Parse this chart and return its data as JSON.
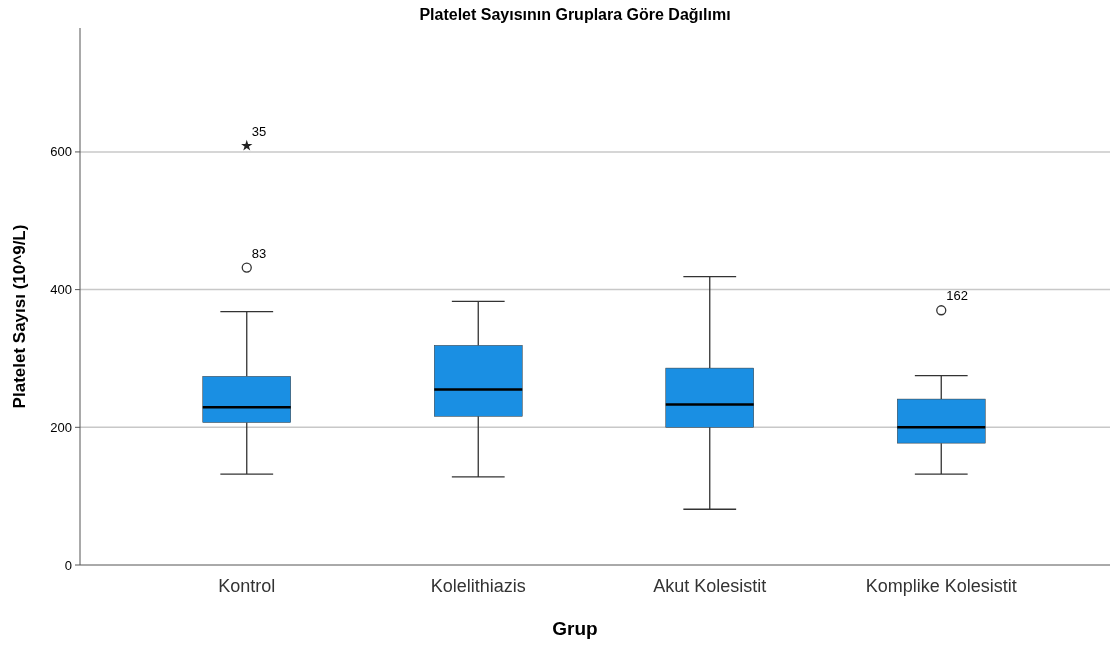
{
  "chart_data": {
    "type": "box",
    "title": "Platelet Sayısının Gruplara Göre Dağılımı",
    "xlabel": "Grup",
    "ylabel": "Platelet Sayısı (10^9/L)",
    "categories": [
      "Kontrol",
      "Kolelithiazis",
      "Akut Kolesistit",
      "Komplike Kolesistit"
    ],
    "color": "#1a8fe3",
    "boxes": [
      {
        "low": 132,
        "q1": 207,
        "median": 229,
        "q3": 274,
        "high": 368,
        "outliers": [
          432,
          609
        ]
      },
      {
        "low": 128,
        "q1": 216,
        "median": 255,
        "q3": 319,
        "high": 383
      },
      {
        "low": 81,
        "q1": 200,
        "median": 233,
        "q3": 286,
        "high": 419
      },
      {
        "low": 132,
        "q1": 177,
        "median": 200,
        "q3": 241,
        "high": 275,
        "outliers": [
          370
        ]
      }
    ],
    "ylim": [
      0,
      780
    ],
    "yticks": [
      0,
      200,
      400,
      600
    ],
    "grid": "y",
    "annotations": [
      "83",
      "35",
      "162"
    ]
  }
}
